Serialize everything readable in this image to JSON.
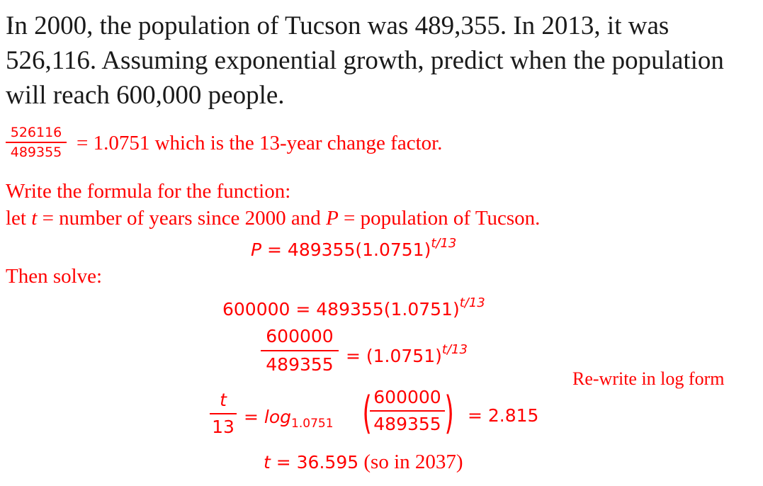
{
  "problem": {
    "text": "In 2000, the population of Tucson was 489,355. In 2013, it was 526,116. Assuming exponential growth, predict when the population will reach 600,000 people."
  },
  "change_factor": {
    "numerator": "526116",
    "denominator": "489355",
    "text": "= 1.0751 which is the 13-year change factor."
  },
  "formula": {
    "heading": "Write the formula for the function:",
    "let_prefix": "let ",
    "t_var": "t",
    "let_middle": " = number of years since 2000 and ",
    "p_var": "P",
    "let_suffix": " = population of Tucson.",
    "equation_lhs": "P",
    "equation_main": " = 489355(1.0751)",
    "equation_exp": "t/13"
  },
  "solve": {
    "heading": "Then solve:",
    "step1_main": "600000 = 489355(1.0751)",
    "step1_exp": "t/13",
    "step2_num": "600000",
    "step2_den": "489355",
    "step2_rhs_main": "= (1.0751)",
    "step2_rhs_exp": "t/13",
    "step3_lhs_num": "t",
    "step3_lhs_den": "13",
    "step3_eq": "= ",
    "step3_log": "log",
    "step3_base": "1.0751",
    "step3_num": "600000",
    "step3_den": "489355",
    "step3_result": "= 2.815",
    "step4_var": "t",
    "step4_eq": " = 36.595",
    "step4_note": " (so in 2037)"
  },
  "side_note": "Re-write in log form"
}
